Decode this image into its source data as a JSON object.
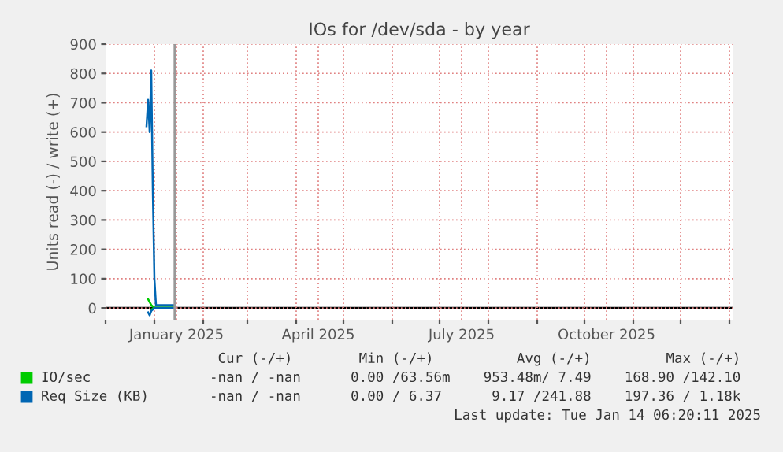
{
  "chart_data": {
    "type": "line",
    "title": "IOs for /dev/sda - by year",
    "ylabel": "Units read (-) / write (+)",
    "x": [
      "2024-12-27",
      "2024-12-28",
      "2024-12-29",
      "2024-12-30",
      "2024-12-31",
      "2025-01-01",
      "2025-01-02",
      "2025-01-14"
    ],
    "series": [
      {
        "name": "IO/sec",
        "color": "#00cc00",
        "values": [
          null,
          30,
          20,
          10,
          5,
          1,
          1,
          1
        ]
      },
      {
        "color": "#00cc00",
        "values": [
          null,
          null,
          null,
          -5,
          -2,
          0,
          0,
          0
        ]
      },
      {
        "name": "Req Size (KB)",
        "color": "#0066b3",
        "values": [
          620,
          710,
          600,
          810,
          400,
          100,
          10,
          10
        ]
      },
      {
        "color": "#0066b3",
        "values": [
          null,
          -15,
          -25,
          -10,
          -5,
          0,
          0,
          0
        ]
      }
    ],
    "xlim": [
      "2024-12-01",
      "2026-01-03"
    ],
    "xticks": [
      {
        "value": "2024-12-01",
        "label": null
      },
      {
        "value": "2025-01-01",
        "label": null
      },
      {
        "value": "2025-01-15",
        "label": "January 2025"
      },
      {
        "value": "2025-02-01",
        "label": null
      },
      {
        "value": "2025-03-01",
        "label": null
      },
      {
        "value": "2025-04-01",
        "label": null
      },
      {
        "value": "2025-04-15",
        "label": "April 2025"
      },
      {
        "value": "2025-05-01",
        "label": null
      },
      {
        "value": "2025-06-01",
        "label": null
      },
      {
        "value": "2025-07-01",
        "label": null
      },
      {
        "value": "2025-07-15",
        "label": "July 2025"
      },
      {
        "value": "2025-08-01",
        "label": null
      },
      {
        "value": "2025-09-01",
        "label": null
      },
      {
        "value": "2025-10-01",
        "label": null
      },
      {
        "value": "2025-10-15",
        "label": "October 2025"
      },
      {
        "value": "2025-11-01",
        "label": null
      },
      {
        "value": "2025-12-01",
        "label": null
      },
      {
        "value": "2026-01-01",
        "label": null
      }
    ],
    "ylim": [
      -40,
      900
    ],
    "yticks": [
      0,
      100,
      200,
      300,
      400,
      500,
      600,
      700,
      800,
      900
    ],
    "ref_lines": [
      {
        "axis": "y",
        "value": 0,
        "color": "#000000"
      },
      {
        "axis": "x",
        "value": "2025-01-14",
        "color": "#999999"
      }
    ],
    "grid": true,
    "legend": "bottom left",
    "annotations": [
      " Cur (-/+)        Min (-/+)          Avg (-/+)         Max (-/+)",
      "-nan / -nan      0.00 /63.56m    953.48m/ 7.49    168.90 /142.10",
      "-nan / -nan      0.00 / 6.37      9.17 /241.88    197.36 / 1.18k",
      "Last update: Tue Jan 14 06:20:11 2025"
    ]
  }
}
